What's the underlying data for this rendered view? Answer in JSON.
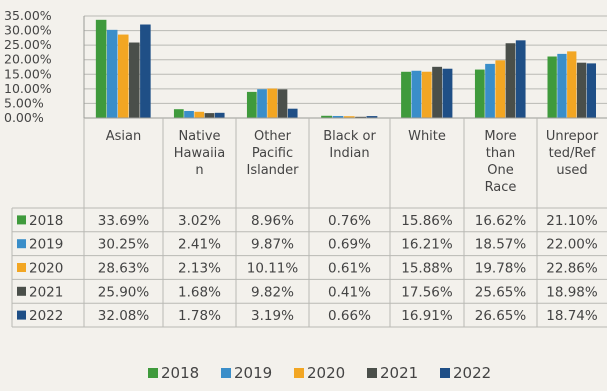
{
  "chart_data": {
    "type": "bar",
    "categories": [
      "Asian",
      "Native Hawaiian",
      "Other Pacific Islander",
      "Black or Indian",
      "White",
      "More than One Race",
      "Unreported/Refused"
    ],
    "category_label_lines": [
      [
        "Asian"
      ],
      [
        "Native",
        "Hawaiia",
        "n"
      ],
      [
        "Other",
        "Pacific",
        "Islander"
      ],
      [
        "Black or",
        "Indian"
      ],
      [
        "White"
      ],
      [
        "More",
        "than",
        "One",
        "Race"
      ],
      [
        "Unrepor",
        "ted/Ref",
        "used"
      ]
    ],
    "series": [
      {
        "name": "2018",
        "color": "#3f9a3c",
        "values": [
          33.69,
          3.02,
          8.96,
          0.76,
          15.86,
          16.62,
          21.1
        ]
      },
      {
        "name": "2019",
        "color": "#3a8ec9",
        "values": [
          30.25,
          2.41,
          9.87,
          0.69,
          16.21,
          18.57,
          22.0
        ]
      },
      {
        "name": "2020",
        "color": "#f2a623",
        "values": [
          28.63,
          2.13,
          10.11,
          0.61,
          15.88,
          19.78,
          22.86
        ]
      },
      {
        "name": "2021",
        "color": "#4a4f4a",
        "values": [
          25.9,
          1.68,
          9.82,
          0.41,
          17.56,
          25.65,
          18.98
        ]
      },
      {
        "name": "2022",
        "color": "#1f4f86",
        "values": [
          32.08,
          1.78,
          3.19,
          0.66,
          16.91,
          26.65,
          18.74
        ]
      }
    ],
    "table_values": [
      [
        "33.69%",
        "3.02%",
        "8.96%",
        "0.76%",
        "15.86%",
        "16.62%",
        "21.10%"
      ],
      [
        "30.25%",
        "2.41%",
        "9.87%",
        "0.69%",
        "16.21%",
        "18.57%",
        "22.00%"
      ],
      [
        "28.63%",
        "2.13%",
        "10.11%",
        "0.61%",
        "15.88%",
        "19.78%",
        "22.86%"
      ],
      [
        "25.90%",
        "1.68%",
        "9.82%",
        "0.41%",
        "17.56%",
        "25.65%",
        "18.98%"
      ],
      [
        "32.08%",
        "1.78%",
        "3.19%",
        "0.66%",
        "16.91%",
        "26.65%",
        "18.74%"
      ]
    ],
    "y_ticks": [
      "35.00%",
      "30.00%",
      "25.00%",
      "20.00%",
      "15.00%",
      "10.00%",
      "5.00%",
      "0.00%"
    ],
    "ylim": [
      0,
      35
    ],
    "grid": true,
    "legend_position": "bottom",
    "title": "",
    "xlabel": "",
    "ylabel": ""
  }
}
